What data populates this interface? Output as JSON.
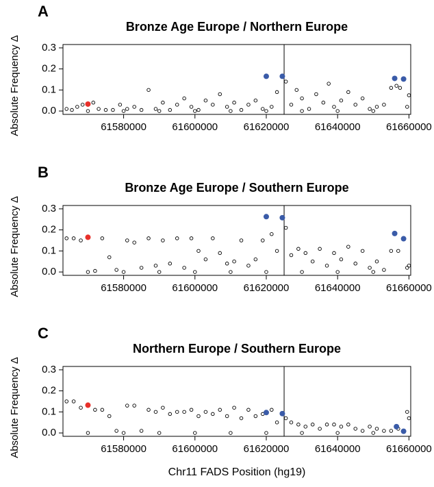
{
  "chart_data": [
    {
      "type": "scatter",
      "panel": "A",
      "title": "Bronze Age Europe / Northern Europe",
      "ylabel": "Absolute Frequency Δ",
      "xlim": [
        61563000,
        61660500
      ],
      "ylim": [
        -0.016,
        0.316
      ],
      "xticks": [
        61580000,
        61600000,
        61620000,
        61640000,
        61660000
      ],
      "yticks": [
        {
          "value": 0,
          "label": "0.0"
        },
        0.1,
        0.2,
        0.3
      ],
      "vline": 61625000,
      "series": [
        {
          "color": "#000000",
          "filled": false,
          "x": [
            61564000,
            61565500,
            61567000,
            61568500,
            61571500,
            61573000,
            61575000,
            61577000,
            61579000,
            61581000,
            61583000,
            61585000,
            61587000,
            61589000,
            61591000,
            61593000,
            61595000,
            61597000,
            61599000,
            61601000,
            61603000,
            61605000,
            61607000,
            61609000,
            61611000,
            61613000,
            61615000,
            61617000,
            61619000,
            61621500,
            61623000,
            61625500,
            61627000,
            61628500,
            61630000,
            61632000,
            61634000,
            61636000,
            61637500,
            61639000,
            61641000,
            61643000,
            61645000,
            61647000,
            61649000,
            61651000,
            61653000,
            61655000,
            61656500,
            61657500,
            61659500,
            61660000,
            61570000,
            61580000,
            61590000,
            61600000,
            61610000,
            61620000,
            61630000,
            61640000,
            61650000
          ],
          "values": [
            0.01,
            0.005,
            0.02,
            0.03,
            0.04,
            0.01,
            0.005,
            0.005,
            0.03,
            0.01,
            0.02,
            0.005,
            0.1,
            0.01,
            0.04,
            0.005,
            0.03,
            0.06,
            0.02,
            0.005,
            0.05,
            0.03,
            0.08,
            0.02,
            0.04,
            0.005,
            0.03,
            0.05,
            0.01,
            0.02,
            0.09,
            0.14,
            0.03,
            0.1,
            0.06,
            0.01,
            0.08,
            0.04,
            0.13,
            0.02,
            0.05,
            0.09,
            0.03,
            0.06,
            0.01,
            0.02,
            0.03,
            0.11,
            0.12,
            0.11,
            0.02,
            0.075,
            0,
            0,
            0,
            0,
            0,
            0,
            0,
            0,
            0
          ]
        },
        {
          "color": "#3a5ba8",
          "filled": true,
          "x": [
            61620000,
            61624500,
            61656000,
            61658500
          ],
          "values": [
            0.165,
            0.165,
            0.155,
            0.152
          ]
        },
        {
          "color": "#e8302a",
          "filled": true,
          "x": [
            61570000
          ],
          "values": [
            0.033
          ]
        }
      ]
    },
    {
      "type": "scatter",
      "panel": "B",
      "title": "Bronze Age Europe / Southern Europe",
      "ylabel": "Absolute Frequency Δ",
      "xlim": [
        61563000,
        61660500
      ],
      "ylim": [
        -0.016,
        0.316
      ],
      "xticks": [
        61580000,
        61600000,
        61620000,
        61640000,
        61660000
      ],
      "yticks": [
        {
          "value": 0,
          "label": "0.0"
        },
        0.1,
        0.2,
        0.3
      ],
      "vline": 61625000,
      "series": [
        {
          "color": "#000000",
          "filled": false,
          "x": [
            61564000,
            61566000,
            61568000,
            61572000,
            61574000,
            61576000,
            61578000,
            61581000,
            61583000,
            61585000,
            61587000,
            61589000,
            61591000,
            61593000,
            61595000,
            61597000,
            61599000,
            61601000,
            61603000,
            61605000,
            61607000,
            61609000,
            61611000,
            61613000,
            61615000,
            61617000,
            61619000,
            61621500,
            61623000,
            61625500,
            61627000,
            61629000,
            61631000,
            61633000,
            61635000,
            61637000,
            61639000,
            61641000,
            61643000,
            61645000,
            61647000,
            61649000,
            61651000,
            61653000,
            61655000,
            61657000,
            61659500,
            61660000,
            61570000,
            61580000,
            61590000,
            61600000,
            61610000,
            61620000,
            61630000,
            61640000,
            61650000
          ],
          "values": [
            0.16,
            0.16,
            0.15,
            0.005,
            0.16,
            0.07,
            0.01,
            0.15,
            0.14,
            0.02,
            0.16,
            0.03,
            0.15,
            0.04,
            0.16,
            0.02,
            0.16,
            0.1,
            0.06,
            0.16,
            0.09,
            0.04,
            0.05,
            0.15,
            0.03,
            0.06,
            0.15,
            0.18,
            0.1,
            0.21,
            0.08,
            0.11,
            0.09,
            0.05,
            0.11,
            0.03,
            0.09,
            0.06,
            0.12,
            0.04,
            0.1,
            0.02,
            0.05,
            0.01,
            0.1,
            0.1,
            0.02,
            0.03,
            0,
            0,
            0,
            0,
            0,
            0,
            0,
            0,
            0
          ]
        },
        {
          "color": "#3a5ba8",
          "filled": true,
          "x": [
            61620000,
            61624500,
            61656000,
            61658500
          ],
          "values": [
            0.263,
            0.258,
            0.183,
            0.158
          ]
        },
        {
          "color": "#e8302a",
          "filled": true,
          "x": [
            61570000
          ],
          "values": [
            0.165
          ]
        }
      ]
    },
    {
      "type": "scatter",
      "panel": "C",
      "title": "Northern Europe / Southern Europe",
      "ylabel": "Absolute Frequency Δ",
      "xlabel": "Chr11 FADS Position (hg19)",
      "xlim": [
        61563000,
        61660500
      ],
      "ylim": [
        -0.016,
        0.316
      ],
      "xticks": [
        61580000,
        61600000,
        61620000,
        61640000,
        61660000
      ],
      "yticks": [
        {
          "value": 0,
          "label": "0.0"
        },
        0.1,
        0.2,
        0.3
      ],
      "vline": 61625000,
      "series": [
        {
          "color": "#000000",
          "filled": false,
          "x": [
            61564000,
            61566000,
            61568000,
            61572000,
            61574000,
            61576000,
            61578000,
            61581000,
            61583000,
            61585000,
            61587000,
            61589000,
            61591000,
            61593000,
            61595000,
            61597000,
            61599000,
            61601000,
            61603000,
            61605000,
            61607000,
            61609000,
            61611000,
            61613000,
            61615000,
            61617000,
            61619000,
            61621500,
            61623000,
            61625500,
            61627000,
            61629000,
            61631000,
            61633000,
            61635000,
            61637000,
            61639000,
            61641000,
            61643000,
            61645000,
            61647000,
            61649000,
            61651000,
            61653000,
            61655000,
            61657000,
            61659500,
            61660000,
            61570000,
            61580000,
            61590000,
            61600000,
            61610000,
            61620000,
            61630000,
            61640000,
            61650000
          ],
          "values": [
            0.15,
            0.15,
            0.12,
            0.11,
            0.11,
            0.08,
            0.01,
            0.13,
            0.13,
            0.01,
            0.11,
            0.1,
            0.12,
            0.09,
            0.1,
            0.1,
            0.11,
            0.08,
            0.1,
            0.09,
            0.11,
            0.08,
            0.12,
            0.07,
            0.11,
            0.08,
            0.09,
            0.11,
            0.05,
            0.07,
            0.05,
            0.04,
            0.03,
            0.04,
            0.02,
            0.04,
            0.04,
            0.03,
            0.04,
            0.02,
            0.01,
            0.03,
            0.02,
            0.01,
            0.01,
            0.02,
            0.1,
            0.07,
            0,
            0,
            0,
            0,
            0,
            0,
            0,
            0,
            0
          ]
        },
        {
          "color": "#3a5ba8",
          "filled": true,
          "x": [
            61620000,
            61624500,
            61656500,
            61658500
          ],
          "values": [
            0.097,
            0.092,
            0.03,
            0.008
          ]
        },
        {
          "color": "#e8302a",
          "filled": true,
          "x": [
            61570000
          ],
          "values": [
            0.132
          ]
        }
      ]
    }
  ]
}
